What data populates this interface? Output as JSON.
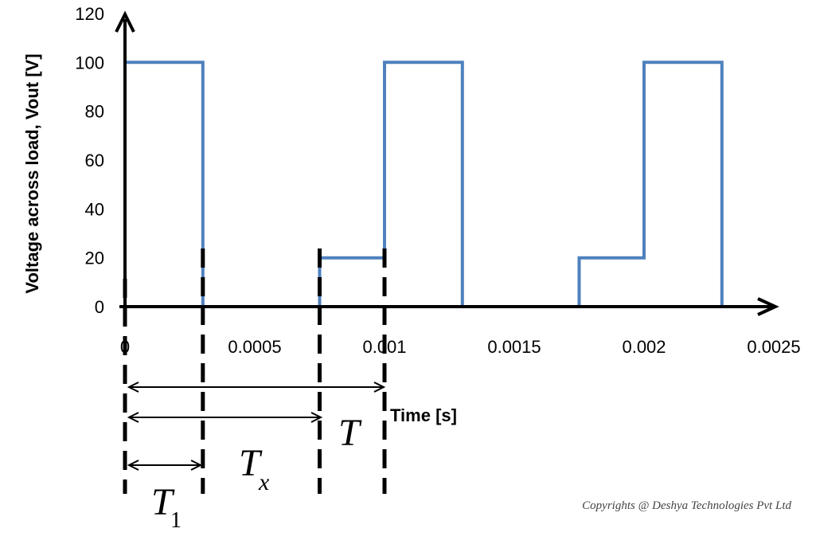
{
  "chart_data": {
    "type": "line",
    "title": "",
    "xlabel": "Time [s]",
    "ylabel": "Voltage across load, Vout [V]",
    "xlim": [
      0,
      0.0025
    ],
    "ylim": [
      0,
      120
    ],
    "x_ticks": [
      "0",
      "0.0005",
      "0.001",
      "0.0015",
      "0.002",
      "0.0025"
    ],
    "y_ticks": [
      "0",
      "20",
      "40",
      "60",
      "80",
      "100",
      "120"
    ],
    "grid": false,
    "legend": "none",
    "series": [
      {
        "color": "#4F81BD",
        "x": [
          0,
          0.0003,
          0.0003,
          0.00075,
          0.00075,
          0.001,
          0.001,
          0.0013,
          0.0013,
          0.00175,
          0.00175,
          0.002,
          0.002,
          0.0023,
          0.0023,
          0.0025
        ],
        "y": [
          100,
          100,
          0,
          0,
          20,
          20,
          100,
          100,
          0,
          0,
          20,
          20,
          100,
          100,
          0,
          0
        ]
      }
    ],
    "annotations": {
      "T": "T",
      "Tx_main": "T",
      "Tx_sub": "x",
      "T1_main": "T",
      "T1_sub": "1",
      "markers_x": [
        0,
        0.0003,
        0.00075,
        0.001
      ]
    }
  },
  "footer": {
    "copyright": "Copyrights @ Deshya Technologies Pvt Ltd"
  }
}
